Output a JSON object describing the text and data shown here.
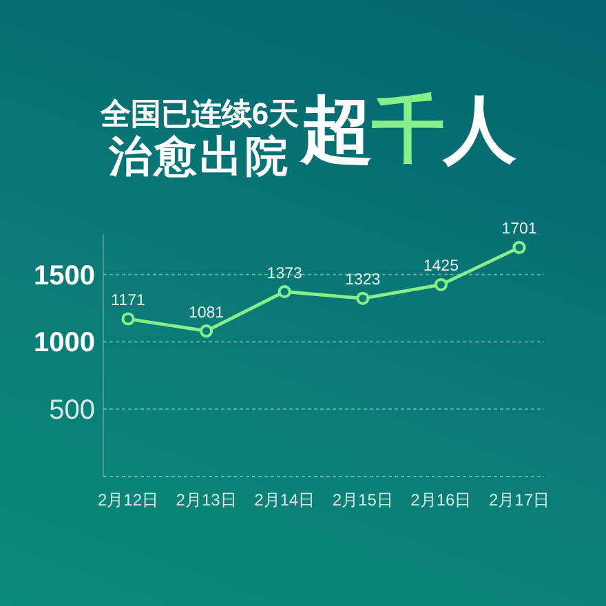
{
  "chart_data": {
    "type": "line",
    "title": "全国已连续6天治愈出院",
    "subtitle": "超千人",
    "categories": [
      "2月12日",
      "2月13日",
      "2月14日",
      "2月15日",
      "2月16日",
      "2月17日"
    ],
    "values": [
      1171,
      1081,
      1373,
      1323,
      1425,
      1701
    ],
    "color": "#86ee8a",
    "ylim": [
      0,
      1800
    ],
    "yticks": [
      500,
      1000,
      1500
    ],
    "grid": "y",
    "marker": "circle",
    "line_style": "solid",
    "data_labels": true
  }
}
